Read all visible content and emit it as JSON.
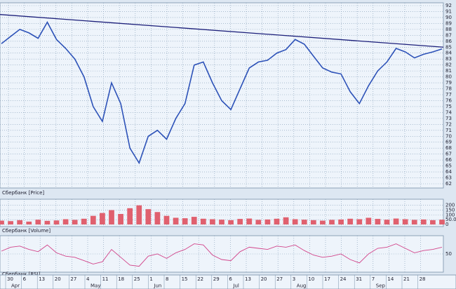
{
  "chart_data": [
    {
      "type": "line",
      "label": "Сбербанк [Price]",
      "color": "#2d52b8",
      "values": [
        85.6,
        86.8,
        88.0,
        87.4,
        86.5,
        89.2,
        86.3,
        84.8,
        83.0,
        80.0,
        75.0,
        72.5,
        79.0,
        75.5,
        68.0,
        65.5,
        70.0,
        71.0,
        69.5,
        73.0,
        75.5,
        82.0,
        82.5,
        79.0,
        76.0,
        74.5,
        78.0,
        81.5,
        82.5,
        82.8,
        84.0,
        84.6,
        86.3,
        85.5,
        83.5,
        81.5,
        80.8,
        80.5,
        77.5,
        75.5,
        78.5,
        81.0,
        82.5,
        84.8,
        84.2,
        83.2,
        83.8,
        84.2,
        84.7
      ],
      "trendline": {
        "values": [
          90.5,
          85.0
        ],
        "color": "#1c1f7a"
      },
      "ylim": [
        62,
        92
      ],
      "yticks": [
        62,
        63,
        64,
        65,
        66,
        67,
        68,
        69,
        70,
        71,
        72,
        73,
        74,
        75,
        76,
        77,
        78,
        79,
        80,
        81,
        82,
        83,
        84,
        85,
        86,
        87,
        88,
        89,
        90,
        91,
        92
      ],
      "grid": true
    },
    {
      "type": "bar",
      "label": "Сбербанк [Volume]",
      "color": "#e0606e",
      "values": [
        40,
        35,
        45,
        30,
        50,
        38,
        42,
        55,
        48,
        60,
        90,
        120,
        150,
        110,
        170,
        200,
        160,
        130,
        90,
        70,
        65,
        80,
        60,
        55,
        50,
        45,
        58,
        62,
        48,
        52,
        60,
        75,
        55,
        50,
        45,
        40,
        48,
        52,
        60,
        55,
        70,
        58,
        50,
        62,
        55,
        48,
        52,
        45,
        50
      ],
      "ylim": [
        0,
        220
      ],
      "yticks": [
        0,
        {
          "value": 50,
          "label": "50.0"
        },
        100,
        150,
        200
      ],
      "grid": true
    },
    {
      "type": "line",
      "label": "Сбербанк [RSI]",
      "color": "#d2448a",
      "values": [
        55,
        62,
        64,
        58,
        54,
        66,
        52,
        46,
        44,
        38,
        32,
        36,
        58,
        44,
        30,
        28,
        46,
        50,
        42,
        52,
        58,
        68,
        66,
        48,
        40,
        38,
        54,
        62,
        60,
        58,
        64,
        62,
        66,
        56,
        48,
        44,
        46,
        50,
        40,
        34,
        50,
        60,
        62,
        68,
        60,
        52,
        56,
        58,
        62
      ],
      "ylim": [
        20,
        80
      ],
      "yticks": [
        50
      ],
      "grid": true
    }
  ],
  "date_axis": {
    "days": [
      "30",
      "6",
      "13",
      "20",
      "27",
      "4",
      "11",
      "18",
      "25",
      "1",
      "8",
      "15",
      "22",
      "29",
      "6",
      "13",
      "20",
      "27",
      "3",
      "10",
      "17",
      "24",
      "31",
      "7",
      "14",
      "21",
      "28"
    ],
    "months": [
      "Apr",
      "May",
      "Jun",
      "Jul",
      "Aug",
      "Sep"
    ]
  }
}
